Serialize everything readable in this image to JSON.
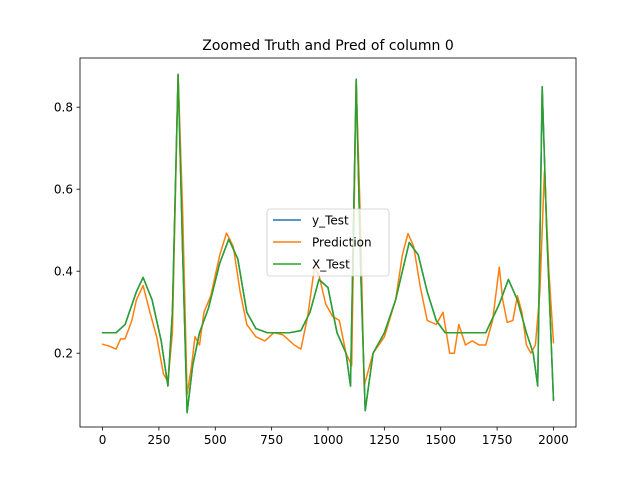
{
  "chart_data": {
    "type": "line",
    "title": "Zoomed Truth and Pred of column 0",
    "xlabel": "",
    "ylabel": "",
    "xlim": [
      -100,
      2100
    ],
    "ylim": [
      0.02,
      0.92
    ],
    "xticks": [
      0,
      250,
      500,
      750,
      1000,
      1250,
      1500,
      1750,
      2000
    ],
    "yticks": [
      0.2,
      0.4,
      0.6,
      0.8
    ],
    "grid": false,
    "legend": {
      "position": "center",
      "entries": [
        "y_Test",
        "Prediction",
        "X_Test"
      ]
    },
    "series": [
      {
        "name": "y_Test",
        "color": "#1f77b4",
        "x": [
          0,
          60,
          100,
          150,
          180,
          220,
          260,
          290,
          310,
          335,
          355,
          375,
          400,
          430,
          470,
          520,
          560,
          600,
          640,
          680,
          730,
          780,
          830,
          880,
          920,
          960,
          1000,
          1040,
          1080,
          1100,
          1125,
          1145,
          1165,
          1200,
          1250,
          1300,
          1360,
          1400,
          1440,
          1480,
          1520,
          1560,
          1620,
          1700,
          1760,
          1800,
          1840,
          1880,
          1910,
          1930,
          1950,
          1970,
          2000
        ],
        "y": [
          0.25,
          0.25,
          0.27,
          0.35,
          0.385,
          0.33,
          0.23,
          0.12,
          0.3,
          0.88,
          0.45,
          0.055,
          0.17,
          0.25,
          0.31,
          0.42,
          0.478,
          0.43,
          0.3,
          0.26,
          0.25,
          0.25,
          0.25,
          0.255,
          0.3,
          0.38,
          0.36,
          0.25,
          0.2,
          0.12,
          0.868,
          0.4,
          0.06,
          0.2,
          0.25,
          0.33,
          0.47,
          0.44,
          0.35,
          0.28,
          0.25,
          0.25,
          0.25,
          0.25,
          0.32,
          0.38,
          0.33,
          0.25,
          0.2,
          0.12,
          0.85,
          0.5,
          0.085
        ]
      },
      {
        "name": "Prediction",
        "color": "#ff7f0e",
        "x": [
          0,
          30,
          60,
          80,
          100,
          130,
          150,
          180,
          210,
          240,
          270,
          290,
          310,
          335,
          355,
          375,
          395,
          410,
          430,
          450,
          480,
          520,
          550,
          580,
          610,
          640,
          680,
          720,
          760,
          800,
          850,
          880,
          910,
          940,
          960,
          990,
          1020,
          1050,
          1080,
          1105,
          1125,
          1145,
          1160,
          1180,
          1200,
          1250,
          1300,
          1330,
          1355,
          1380,
          1410,
          1440,
          1480,
          1510,
          1540,
          1560,
          1580,
          1610,
          1640,
          1670,
          1700,
          1730,
          1760,
          1775,
          1795,
          1820,
          1840,
          1860,
          1880,
          1900,
          1920,
          1940,
          1960,
          1980,
          2000
        ],
        "y": [
          0.222,
          0.217,
          0.21,
          0.235,
          0.235,
          0.28,
          0.33,
          0.365,
          0.3,
          0.24,
          0.15,
          0.13,
          0.25,
          0.88,
          0.55,
          0.1,
          0.17,
          0.24,
          0.22,
          0.3,
          0.34,
          0.44,
          0.493,
          0.46,
          0.35,
          0.27,
          0.24,
          0.23,
          0.25,
          0.245,
          0.22,
          0.21,
          0.29,
          0.41,
          0.39,
          0.32,
          0.29,
          0.28,
          0.2,
          0.17,
          0.86,
          0.5,
          0.12,
          0.16,
          0.2,
          0.24,
          0.33,
          0.44,
          0.492,
          0.46,
          0.36,
          0.28,
          0.27,
          0.3,
          0.2,
          0.2,
          0.27,
          0.22,
          0.23,
          0.22,
          0.22,
          0.28,
          0.41,
          0.33,
          0.275,
          0.28,
          0.34,
          0.3,
          0.22,
          0.2,
          0.22,
          0.35,
          0.645,
          0.4,
          0.225
        ]
      },
      {
        "name": "X_Test",
        "color": "#2ca02c",
        "x": [
          0,
          60,
          100,
          150,
          180,
          220,
          260,
          290,
          310,
          335,
          355,
          375,
          400,
          430,
          470,
          520,
          560,
          600,
          640,
          680,
          730,
          780,
          830,
          880,
          920,
          960,
          1000,
          1040,
          1080,
          1100,
          1125,
          1145,
          1165,
          1200,
          1250,
          1300,
          1360,
          1400,
          1440,
          1480,
          1520,
          1560,
          1620,
          1700,
          1760,
          1800,
          1840,
          1880,
          1910,
          1930,
          1950,
          1970,
          2000
        ],
        "y": [
          0.25,
          0.25,
          0.27,
          0.35,
          0.385,
          0.33,
          0.23,
          0.12,
          0.3,
          0.88,
          0.45,
          0.055,
          0.17,
          0.25,
          0.31,
          0.42,
          0.478,
          0.43,
          0.3,
          0.26,
          0.25,
          0.25,
          0.25,
          0.255,
          0.3,
          0.38,
          0.36,
          0.25,
          0.2,
          0.12,
          0.868,
          0.4,
          0.06,
          0.2,
          0.25,
          0.33,
          0.47,
          0.44,
          0.35,
          0.28,
          0.25,
          0.25,
          0.25,
          0.25,
          0.32,
          0.38,
          0.33,
          0.25,
          0.2,
          0.12,
          0.85,
          0.5,
          0.085
        ]
      }
    ]
  }
}
